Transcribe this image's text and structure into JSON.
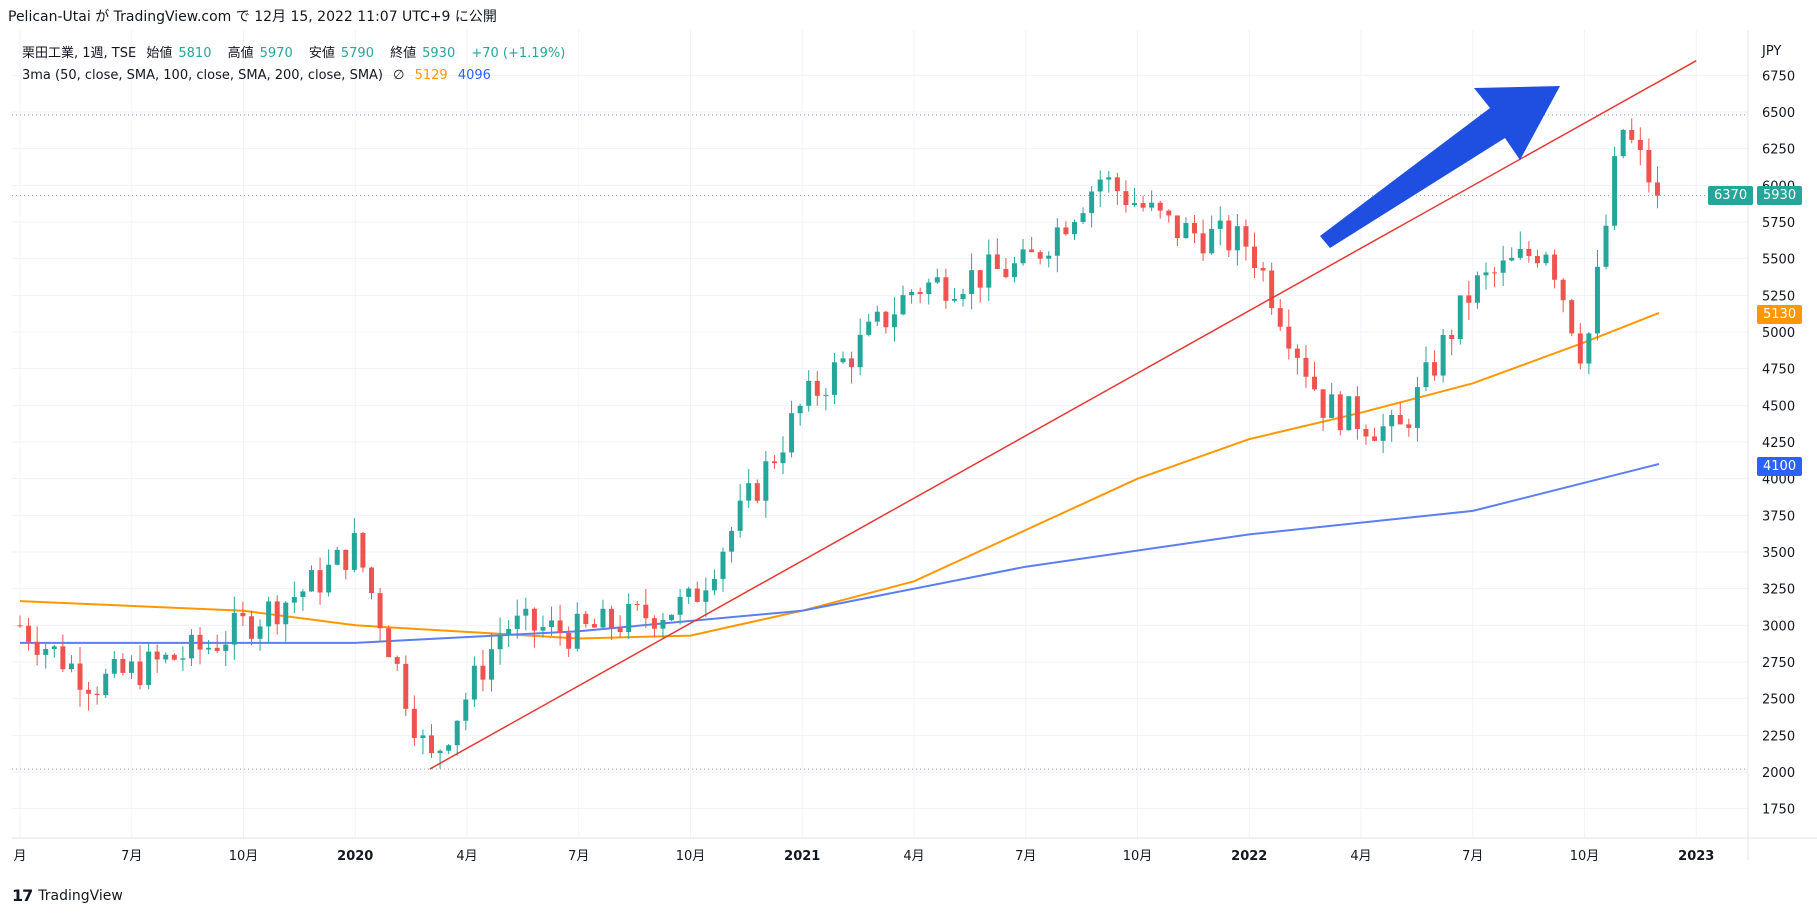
{
  "header": {
    "title": "Pelican-Utai が TradingView.com で 12月 15, 2022 11:07 UTC+9 に公開"
  },
  "legend": {
    "symbol": "栗田工業, 1週, TSE",
    "ohlc": [
      {
        "label": "始値",
        "value": "5810"
      },
      {
        "label": "高値",
        "value": "5970"
      },
      {
        "label": "安値",
        "value": "5790"
      },
      {
        "label": "終値",
        "value": "5930"
      }
    ],
    "change": "+70 (+1.19%)",
    "indicator": "3ma (50, close, SMA, 100, close, SMA, 200, close, SMA)",
    "ma_values": [
      "5129",
      "4096"
    ]
  },
  "footer": {
    "brand": "TradingView"
  },
  "colors": {
    "up": "#26a69a",
    "down": "#ef5350",
    "ma100": "#ff9800",
    "ma200": "#5b7ff0",
    "trend": "#e53935",
    "arrow": "#1e4fe0"
  },
  "price_tags": {
    "current_left": "6370",
    "current": "5930",
    "ma100": "5130",
    "ma200": "4100"
  },
  "chart_data": {
    "type": "candlestick",
    "currency": "JPY",
    "interval": "1週",
    "y_ticks": [
      1750,
      2000,
      2250,
      2500,
      2750,
      3000,
      3250,
      3500,
      3750,
      4000,
      4250,
      4500,
      4750,
      5000,
      5250,
      5500,
      5750,
      6000,
      6250,
      6500,
      6750
    ],
    "x_ticks": [
      {
        "label": "月",
        "date": "2019-04"
      },
      {
        "label": "7月",
        "date": "2019-07"
      },
      {
        "label": "10月",
        "date": "2019-10"
      },
      {
        "label": "2020",
        "date": "2020-01"
      },
      {
        "label": "4月",
        "date": "2020-04"
      },
      {
        "label": "7月",
        "date": "2020-07"
      },
      {
        "label": "10月",
        "date": "2020-10"
      },
      {
        "label": "2021",
        "date": "2021-01"
      },
      {
        "label": "4月",
        "date": "2021-04"
      },
      {
        "label": "7月",
        "date": "2021-07"
      },
      {
        "label": "10月",
        "date": "2021-10"
      },
      {
        "label": "2022",
        "date": "2022-01"
      },
      {
        "label": "4月",
        "date": "2022-04"
      },
      {
        "label": "7月",
        "date": "2022-07"
      },
      {
        "label": "10月",
        "date": "2022-10"
      },
      {
        "label": "2023",
        "date": "2023-01"
      }
    ],
    "key_closes": [
      {
        "date": "2019-04",
        "close": 3000
      },
      {
        "date": "2019-06",
        "close": 2600
      },
      {
        "date": "2019-09",
        "close": 2850
      },
      {
        "date": "2019-12",
        "close": 3300
      },
      {
        "date": "2020-01",
        "close": 3550
      },
      {
        "date": "2020-03",
        "close": 2050
      },
      {
        "date": "2020-05",
        "close": 3000
      },
      {
        "date": "2020-07",
        "close": 2950
      },
      {
        "date": "2020-10",
        "close": 3150
      },
      {
        "date": "2021-01",
        "close": 4500
      },
      {
        "date": "2021-04",
        "close": 5300
      },
      {
        "date": "2021-07",
        "close": 5450
      },
      {
        "date": "2021-09",
        "close": 6050
      },
      {
        "date": "2021-11",
        "close": 5700
      },
      {
        "date": "2022-01",
        "close": 5600
      },
      {
        "date": "2022-03",
        "close": 4500
      },
      {
        "date": "2022-05",
        "close": 4300
      },
      {
        "date": "2022-07",
        "close": 5300
      },
      {
        "date": "2022-09",
        "close": 5600
      },
      {
        "date": "2022-10",
        "close": 4800
      },
      {
        "date": "2022-11",
        "close": 6400
      },
      {
        "date": "2022-12",
        "close": 5930
      }
    ],
    "ma100": [
      {
        "date": "2019-04",
        "value": 3165
      },
      {
        "date": "2019-10",
        "value": 3100
      },
      {
        "date": "2020-01",
        "value": 3000
      },
      {
        "date": "2020-07",
        "value": 2910
      },
      {
        "date": "2020-10",
        "value": 2930
      },
      {
        "date": "2021-01",
        "value": 3100
      },
      {
        "date": "2021-04",
        "value": 3300
      },
      {
        "date": "2021-07",
        "value": 3650
      },
      {
        "date": "2021-10",
        "value": 4000
      },
      {
        "date": "2022-01",
        "value": 4270
      },
      {
        "date": "2022-04",
        "value": 4450
      },
      {
        "date": "2022-07",
        "value": 4650
      },
      {
        "date": "2022-10",
        "value": 4930
      },
      {
        "date": "2022-12",
        "value": 5130
      }
    ],
    "ma200": [
      {
        "date": "2019-04",
        "value": 2880
      },
      {
        "date": "2020-01",
        "value": 2880
      },
      {
        "date": "2020-07",
        "value": 2960
      },
      {
        "date": "2021-01",
        "value": 3100
      },
      {
        "date": "2021-07",
        "value": 3400
      },
      {
        "date": "2022-01",
        "value": 3620
      },
      {
        "date": "2022-07",
        "value": 3780
      },
      {
        "date": "2022-12",
        "value": 4100
      }
    ],
    "annotations": [
      {
        "type": "trendline",
        "from": {
          "date": "2020-03",
          "price": 2020
        },
        "to": {
          "date": "2023-01",
          "price": 6850
        }
      },
      {
        "type": "hline",
        "price": 2020
      },
      {
        "type": "hline",
        "price": 6480
      },
      {
        "type": "hline",
        "price": 5930
      },
      {
        "type": "arrow",
        "direction": "up-right"
      }
    ]
  }
}
